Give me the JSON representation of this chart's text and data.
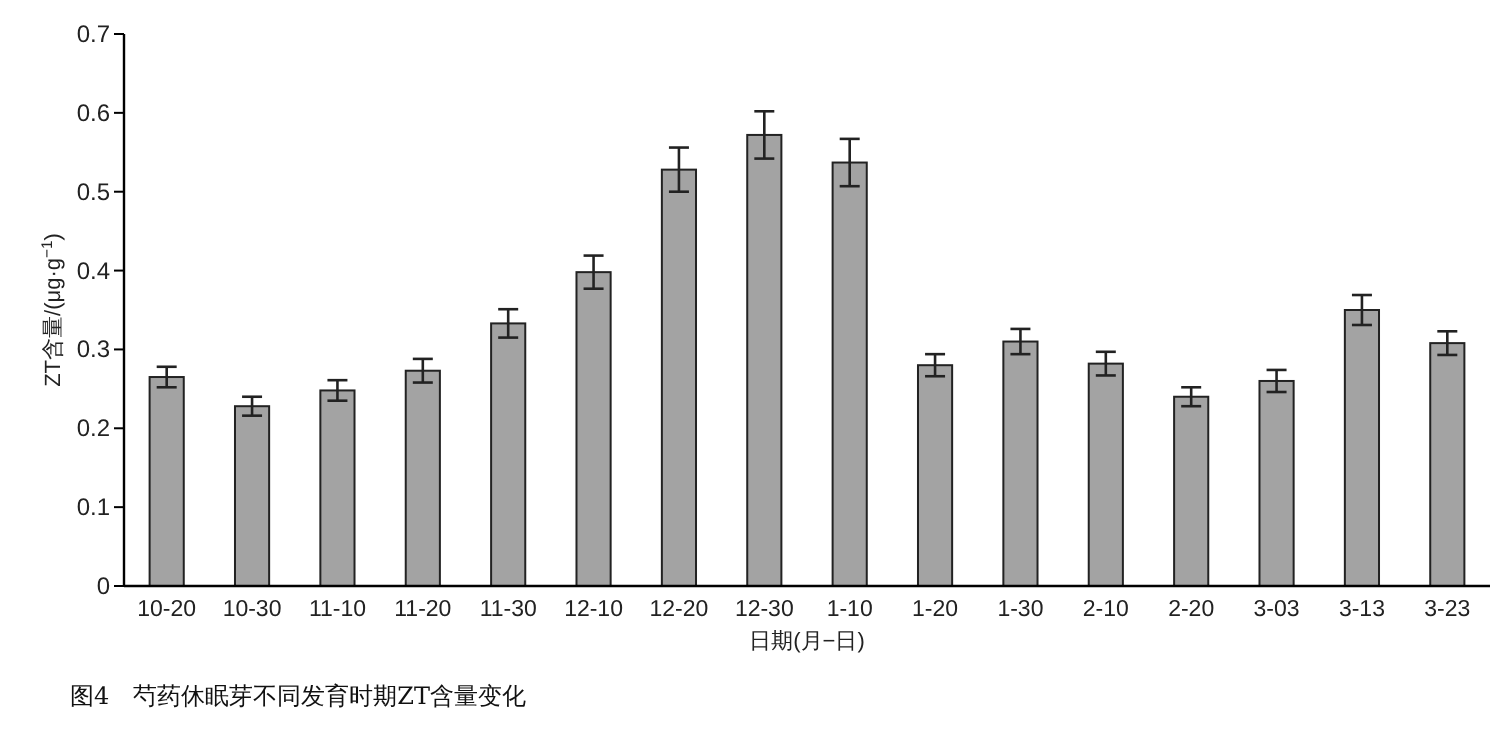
{
  "chart_data": {
    "type": "bar",
    "categories": [
      "10-20",
      "10-30",
      "11-10",
      "11-20",
      "11-30",
      "12-10",
      "12-20",
      "12-30",
      "1-10",
      "1-20",
      "1-30",
      "2-10",
      "2-20",
      "3-03",
      "3-13",
      "3-23"
    ],
    "values": [
      0.265,
      0.228,
      0.248,
      0.273,
      0.333,
      0.398,
      0.528,
      0.572,
      0.537,
      0.28,
      0.31,
      0.282,
      0.24,
      0.26,
      0.35,
      0.308
    ],
    "errors": [
      0.013,
      0.012,
      0.013,
      0.015,
      0.018,
      0.021,
      0.028,
      0.03,
      0.03,
      0.014,
      0.016,
      0.015,
      0.012,
      0.014,
      0.019,
      0.015
    ],
    "color": "#a3a3a3",
    "xlabel": "日期(月−日)",
    "ylabel": "ZT含量/(μg·g$^{−1}$)",
    "ylim": [
      0,
      0.7
    ],
    "yticks": [
      0,
      0.1,
      0.2,
      0.3,
      0.4,
      0.5,
      0.6,
      0.7
    ],
    "grid": false,
    "annotations": [
      "图4　芍药休眠芽不同发育时期ZT含量变化"
    ]
  }
}
